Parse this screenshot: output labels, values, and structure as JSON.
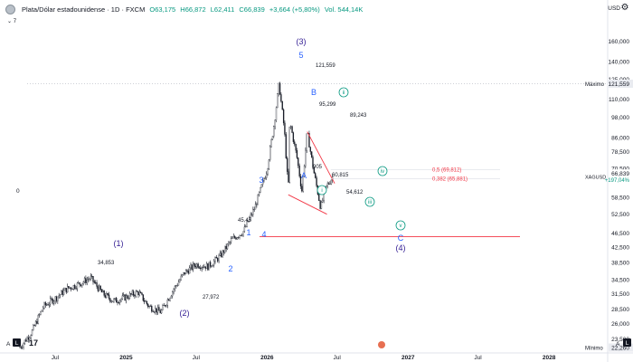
{
  "header": {
    "symbol_title": "Plata/Dólar estadounidense · 1D · FXCM",
    "open": "O63,175",
    "high": "H66,872",
    "low": "L62,411",
    "close": "C66,839",
    "change": "+3,664 (+5,80%)",
    "volume": "Vol. 544,14K",
    "indicator_toggle": "7",
    "currency": "USD",
    "left_axis_zero": "0"
  },
  "chart_data": {
    "type": "line",
    "title": "Plata/Dólar estadounidense · 1D · FXCM",
    "y_scale": "log",
    "ylim": [
      21.5,
      165
    ],
    "y_ticks": [
      "160,000",
      "140,000",
      "125,000",
      "110,000",
      "98,000",
      "86,000",
      "78,500",
      "70,500",
      "66,839",
      "58,500",
      "52,500",
      "46,500",
      "42,500",
      "38,500",
      "34,500",
      "31,500",
      "28,500",
      "26,000",
      "23,500",
      "22,260"
    ],
    "x_tick_labels": [
      "Jul",
      "2025",
      "Jul",
      "2026",
      "Jul",
      "2027",
      "Jul",
      "2028"
    ],
    "price_tag": {
      "symbol": "XAGUSD",
      "value": "66,839",
      "change": "+197,04%",
      "color": "#089981"
    },
    "max_tag": {
      "label": "Máximo",
      "value": "121,559"
    },
    "min_tag": {
      "label": "Mínimo",
      "value": "22,260"
    },
    "series": [
      {
        "points": [
          [
            "2024-04",
            22.3
          ],
          [
            "2024-05",
            24.5
          ],
          [
            "2024-06",
            29.0
          ],
          [
            "2024-07",
            30.5
          ],
          [
            "2024-08",
            32.5
          ],
          [
            "2024-09",
            33.5
          ],
          [
            "2024-10",
            34.85
          ],
          [
            "2024-11",
            31.5
          ],
          [
            "2024-12",
            30.0
          ],
          [
            "2025-01",
            30.8
          ],
          [
            "2025-02",
            31.8
          ],
          [
            "2025-03",
            29.0
          ],
          [
            "2025-04",
            27.97
          ],
          [
            "2025-05",
            32.0
          ],
          [
            "2025-06",
            36.0
          ],
          [
            "2025-07",
            38.0
          ],
          [
            "2025-08",
            37.5
          ],
          [
            "2025-09",
            40.0
          ],
          [
            "2025-10",
            44.5
          ],
          [
            "2025-11",
            47.0
          ],
          [
            "2025-12",
            55.0
          ],
          [
            "2026-01",
            70.0
          ],
          [
            "2026-01-20",
            95.0
          ],
          [
            "2026-02",
            121.56
          ],
          [
            "2026-02-15",
            90.0
          ],
          [
            "2026-02-25",
            60.9
          ],
          [
            "2026-03",
            95.3
          ],
          [
            "2026-03-20",
            75.0
          ],
          [
            "2026-04",
            60.8
          ],
          [
            "2026-04-15",
            89.24
          ],
          [
            "2026-05",
            70.0
          ],
          [
            "2026-05-20",
            54.6
          ],
          [
            "2026-06",
            62.0
          ],
          [
            "2026-06-20",
            66.84
          ]
        ]
      }
    ],
    "price_labels": [
      "121,559",
      "95,299",
      "89,243",
      "60,815",
      "54,612",
      "34,853",
      "27,972",
      "45,45",
      "905"
    ],
    "wave_labels": {
      "navy": [
        "(3)",
        "(1)",
        "(2)",
        "(4)"
      ],
      "blue": [
        "5",
        "B",
        "A",
        "3",
        "1",
        "2",
        "4",
        "C"
      ],
      "green": [
        "ii",
        "i",
        "iii",
        "iv",
        "v"
      ]
    },
    "fib_levels": [
      {
        "label": "0,5 (69,812)",
        "value": 69.812
      },
      {
        "label": "0,382 (65,881)",
        "value": 65.881
      }
    ],
    "support_line": {
      "value": 45.45
    },
    "colors": {
      "candles": "#131722",
      "trendlines": "#f23645",
      "blue_labels": "#2962ff",
      "navy_labels": "#311b92",
      "green_labels": "#089981"
    }
  }
}
